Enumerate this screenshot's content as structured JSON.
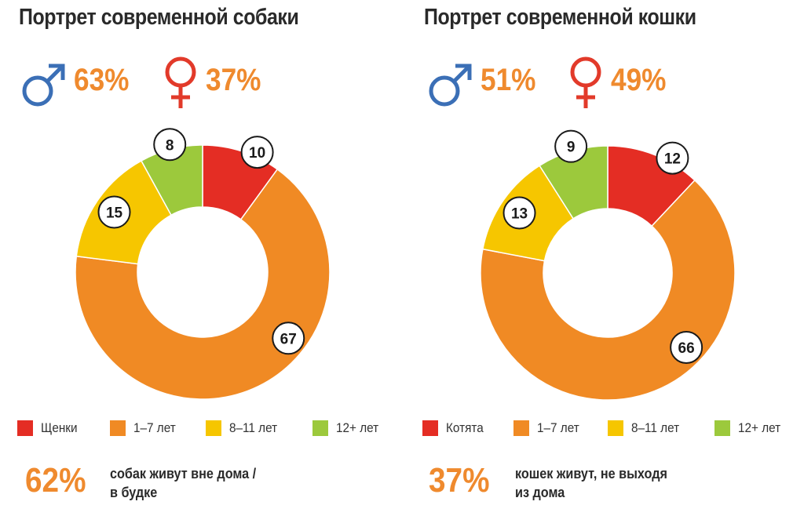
{
  "colors": {
    "orange_text": "#ef8a2e",
    "male_blue": "#3b6fb6",
    "female_red": "#e23a2a",
    "segment_red": "#e42d24",
    "segment_orange": "#f08a24",
    "segment_yellow": "#f6c600",
    "segment_green": "#9cc93c"
  },
  "chart_data": [
    {
      "type": "pie",
      "title": "Портрет современной собаки",
      "gender": {
        "male": "63%",
        "female": "37%",
        "male_icon": "male-symbol-icon",
        "female_icon": "female-symbol-icon"
      },
      "categories": [
        "Щенки",
        "1–7 лет",
        "8–11 лет",
        "12+ лет"
      ],
      "values": [
        10,
        67,
        15,
        8
      ],
      "colors": [
        "#e42d24",
        "#f08a24",
        "#f6c600",
        "#9cc93c"
      ],
      "legend_position": "bottom",
      "note": {
        "value": "62%",
        "lines": [
          "собак живут вне дома /",
          "в будке"
        ]
      }
    },
    {
      "type": "pie",
      "title": "Портрет современной кошки",
      "gender": {
        "male": "51%",
        "female": "49%",
        "male_icon": "male-symbol-icon",
        "female_icon": "female-symbol-icon"
      },
      "categories": [
        "Котята",
        "1–7 лет",
        "8–11 лет",
        "12+ лет"
      ],
      "values": [
        12,
        66,
        13,
        9
      ],
      "colors": [
        "#e42d24",
        "#f08a24",
        "#f6c600",
        "#9cc93c"
      ],
      "legend_position": "bottom",
      "note": {
        "value": "37%",
        "lines": [
          "кошек живут, не выходя",
          "из дома"
        ]
      }
    }
  ]
}
